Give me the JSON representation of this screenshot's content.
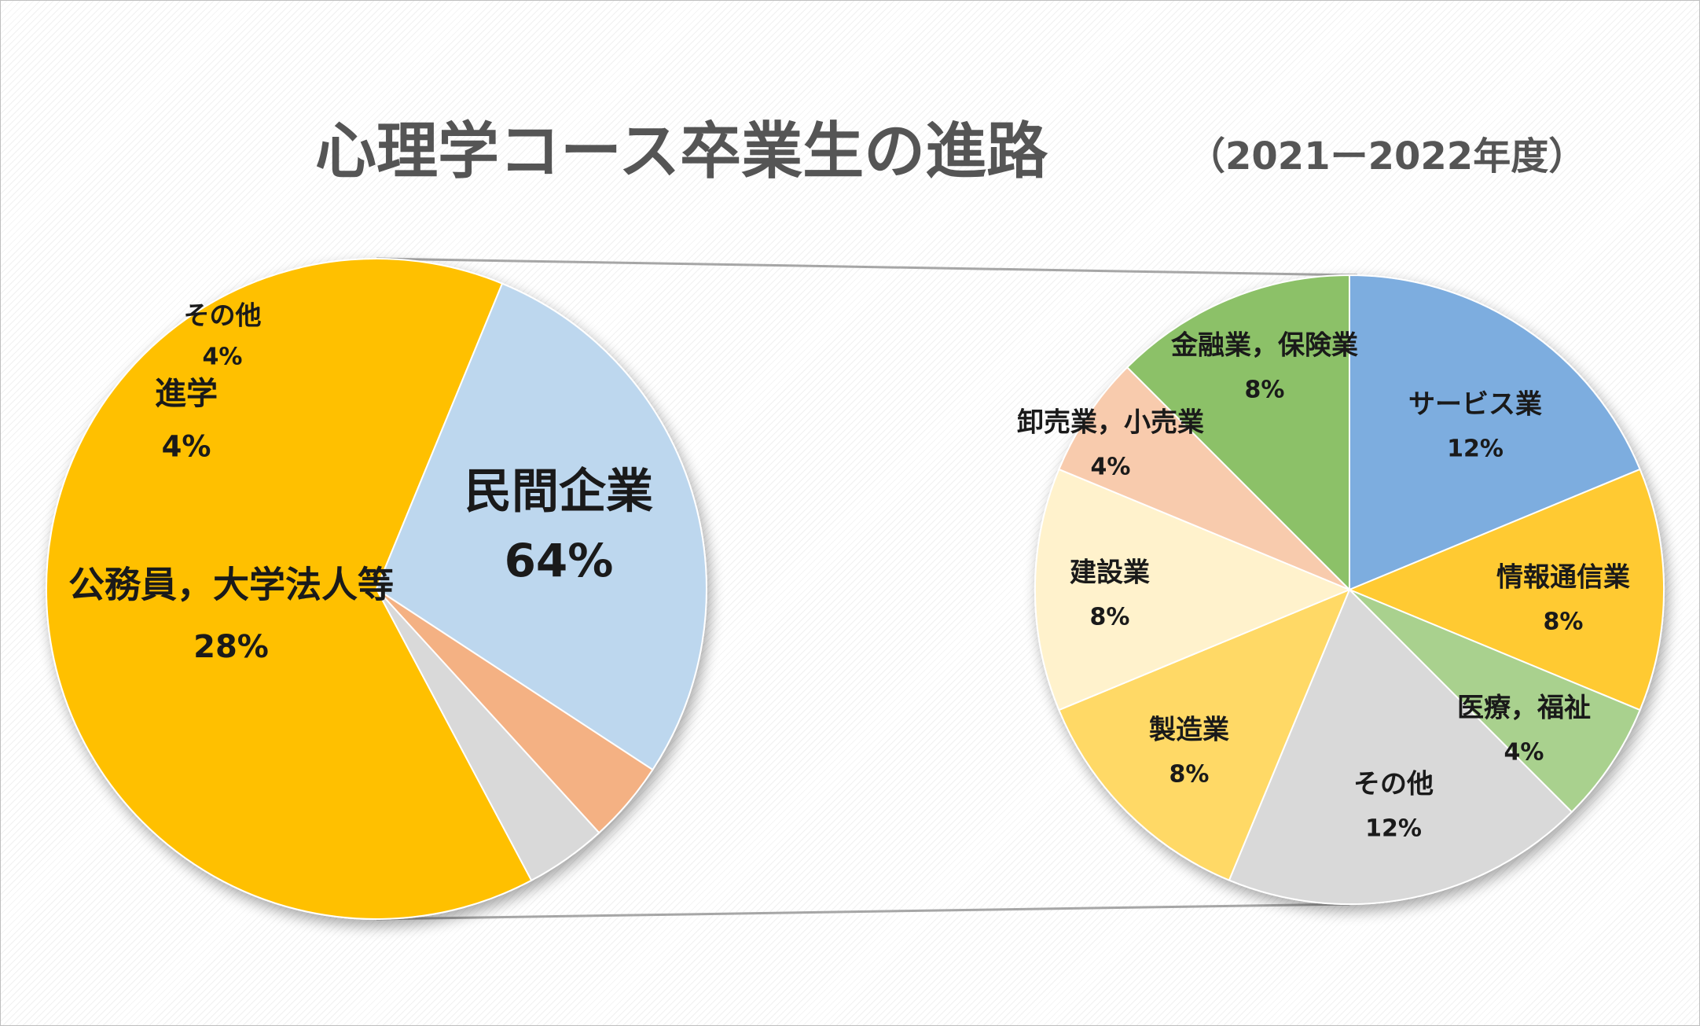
{
  "title": "心理学コース卒業生の進路",
  "subtitle": "（2021ー2022年度）",
  "chart_data": [
    {
      "type": "pie",
      "slices": [
        {
          "name": "民間企業",
          "label": "64%",
          "value": 64,
          "color": "#FFC000"
        },
        {
          "name": "公務員，大学法人等",
          "label": "28%",
          "value": 28,
          "color": "#BDD7EE"
        },
        {
          "name": "進学",
          "label": "4%",
          "value": 4,
          "color": "#F4B183"
        },
        {
          "name": "その他",
          "label": "4%",
          "value": 4,
          "color": "#D9D9D9"
        }
      ]
    },
    {
      "type": "pie",
      "slices": [
        {
          "name": "サービス業",
          "label": "12%",
          "value": 12,
          "color": "#7DADDF"
        },
        {
          "name": "情報通信業",
          "label": "8%",
          "value": 8,
          "color": "#FFCA30"
        },
        {
          "name": "医療，福祉",
          "label": "4%",
          "value": 4,
          "color": "#A9D18E"
        },
        {
          "name": "その他",
          "label": "12%",
          "value": 12,
          "color": "#D9D9D9"
        },
        {
          "name": "製造業",
          "label": "8%",
          "value": 8,
          "color": "#FFD966"
        },
        {
          "name": "建設業",
          "label": "8%",
          "value": 8,
          "color": "#FFF2CC"
        },
        {
          "name": "卸売業，小売業",
          "label": "4%",
          "value": 4,
          "color": "#F8CBAD"
        },
        {
          "name": "金融業，保険業",
          "label": "8%",
          "value": 8,
          "color": "#8CC168"
        }
      ]
    }
  ]
}
